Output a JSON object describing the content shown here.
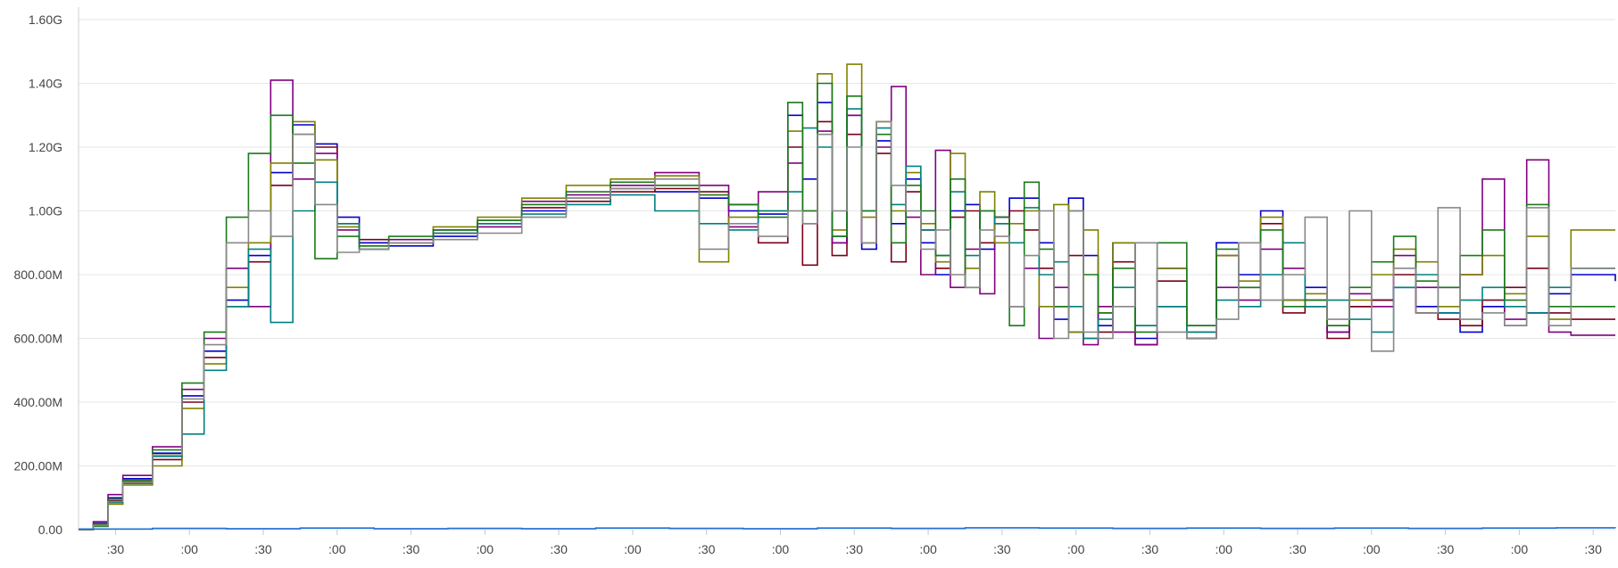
{
  "chart_data": {
    "type": "line",
    "title": "",
    "xlabel": "",
    "ylabel": "",
    "grid": true,
    "legend": "none",
    "ylim": [
      0,
      1600
    ],
    "y_unit": "M",
    "yticks": [
      {
        "value": 0,
        "label": "0.00"
      },
      {
        "value": 200,
        "label": "200.00M"
      },
      {
        "value": 400,
        "label": "400.00M"
      },
      {
        "value": 600,
        "label": "600.00M"
      },
      {
        "value": 800,
        "label": "800.00M"
      },
      {
        "value": 1000,
        "label": "1.00G"
      },
      {
        "value": 1200,
        "label": "1.20G"
      },
      {
        "value": 1400,
        "label": "1.40G"
      },
      {
        "value": 1600,
        "label": "1.60G"
      }
    ],
    "xlim": [
      0,
      10.4
    ],
    "xticks": [
      {
        "value": 0.25,
        "label": ":30"
      },
      {
        "value": 0.75,
        "label": ":00"
      },
      {
        "value": 1.25,
        "label": ":30"
      },
      {
        "value": 1.75,
        "label": ":00"
      },
      {
        "value": 2.25,
        "label": ":30"
      },
      {
        "value": 2.75,
        "label": ":00"
      },
      {
        "value": 3.25,
        "label": ":30"
      },
      {
        "value": 3.75,
        "label": ":00"
      },
      {
        "value": 4.25,
        "label": ":30"
      },
      {
        "value": 4.75,
        "label": ":00"
      },
      {
        "value": 5.25,
        "label": ":30"
      },
      {
        "value": 5.75,
        "label": ":00"
      },
      {
        "value": 6.25,
        "label": ":30"
      },
      {
        "value": 6.75,
        "label": ":00"
      },
      {
        "value": 7.25,
        "label": ":30"
      },
      {
        "value": 7.75,
        "label": ":00"
      },
      {
        "value": 8.25,
        "label": ":30"
      },
      {
        "value": 8.75,
        "label": ":00"
      },
      {
        "value": 9.25,
        "label": ":30"
      },
      {
        "value": 9.75,
        "label": ":00"
      },
      {
        "value": 10.25,
        "label": ":30"
      }
    ],
    "series": [
      {
        "color": "#0000cc",
        "x": [
          0,
          0.1,
          0.2,
          0.3,
          0.5,
          0.7,
          0.85,
          1.0,
          1.15,
          1.3,
          1.45,
          1.6,
          1.75,
          1.9,
          2.1,
          2.4,
          2.7,
          3.0,
          3.3,
          3.6,
          3.9,
          4.2,
          4.4,
          4.6,
          4.8,
          4.9,
          5.0,
          5.1,
          5.2,
          5.3,
          5.4,
          5.5,
          5.6,
          5.7,
          5.8,
          5.9,
          6.0,
          6.1,
          6.2,
          6.3,
          6.4,
          6.5,
          6.6,
          6.7,
          6.8,
          6.9,
          7.0,
          7.15,
          7.3,
          7.5,
          7.7,
          7.85,
          8.0,
          8.15,
          8.3,
          8.45,
          8.6,
          8.75,
          8.9,
          9.05,
          9.2,
          9.35,
          9.5,
          9.65,
          9.8,
          9.95,
          10.1,
          10.4
        ],
        "y": [
          0,
          20,
          100,
          160,
          240,
          420,
          560,
          720,
          860,
          1120,
          1270,
          1210,
          980,
          900,
          890,
          920,
          960,
          1000,
          1040,
          1070,
          1060,
          1040,
          1000,
          990,
          1300,
          1100,
          1340,
          900,
          1300,
          880,
          1220,
          960,
          1100,
          900,
          800,
          1000,
          1020,
          880,
          980,
          1040,
          1040,
          900,
          660,
          1040,
          860,
          640,
          900,
          600,
          820,
          640,
          900,
          800,
          1000,
          720,
          760,
          620,
          700,
          720,
          760,
          700,
          680,
          620,
          700,
          640,
          680,
          740,
          800,
          780
        ]
      },
      {
        "color": "#7a0019",
        "x": [
          0,
          0.1,
          0.2,
          0.3,
          0.5,
          0.7,
          0.85,
          1.0,
          1.15,
          1.3,
          1.45,
          1.6,
          1.75,
          1.9,
          2.1,
          2.4,
          2.7,
          3.0,
          3.3,
          3.6,
          3.9,
          4.2,
          4.4,
          4.6,
          4.8,
          4.9,
          5.0,
          5.1,
          5.2,
          5.3,
          5.4,
          5.5,
          5.6,
          5.7,
          5.8,
          5.9,
          6.0,
          6.1,
          6.2,
          6.3,
          6.4,
          6.5,
          6.6,
          6.7,
          6.8,
          6.9,
          7.0,
          7.15,
          7.3,
          7.5,
          7.7,
          7.85,
          8.0,
          8.15,
          8.3,
          8.45,
          8.6,
          8.75,
          8.9,
          9.05,
          9.2,
          9.35,
          9.5,
          9.65,
          9.8,
          9.95,
          10.1,
          10.4
        ],
        "y": [
          0,
          15,
          90,
          150,
          220,
          400,
          540,
          700,
          840,
          1080,
          1240,
          1200,
          960,
          910,
          900,
          930,
          970,
          1010,
          1030,
          1060,
          1070,
          1060,
          1020,
          900,
          1200,
          830,
          1280,
          860,
          1240,
          900,
          1180,
          840,
          1060,
          940,
          820,
          980,
          1000,
          900,
          960,
          1000,
          940,
          820,
          700,
          860,
          600,
          620,
          840,
          580,
          780,
          600,
          860,
          760,
          960,
          680,
          720,
          600,
          700,
          720,
          800,
          680,
          660,
          640,
          720,
          760,
          820,
          680,
          660,
          660
        ]
      },
      {
        "color": "#800080",
        "x": [
          0,
          0.1,
          0.2,
          0.3,
          0.5,
          0.7,
          0.85,
          1.0,
          1.15,
          1.3,
          1.45,
          1.6,
          1.75,
          1.9,
          2.1,
          2.4,
          2.7,
          3.0,
          3.3,
          3.6,
          3.9,
          4.2,
          4.4,
          4.6,
          4.8,
          4.9,
          5.0,
          5.1,
          5.2,
          5.3,
          5.4,
          5.5,
          5.6,
          5.7,
          5.8,
          5.9,
          6.0,
          6.1,
          6.2,
          6.3,
          6.4,
          6.5,
          6.6,
          6.7,
          6.8,
          6.9,
          7.0,
          7.15,
          7.3,
          7.5,
          7.7,
          7.85,
          8.0,
          8.15,
          8.3,
          8.45,
          8.6,
          8.75,
          8.9,
          9.05,
          9.2,
          9.35,
          9.5,
          9.65,
          9.8,
          9.95,
          10.1,
          10.4
        ],
        "y": [
          0,
          25,
          110,
          170,
          260,
          440,
          600,
          820,
          700,
          1410,
          1100,
          1180,
          940,
          880,
          910,
          940,
          950,
          1030,
          1050,
          1080,
          1120,
          1080,
          950,
          1060,
          1150,
          960,
          1250,
          900,
          1300,
          900,
          1200,
          1390,
          980,
          800,
          1190,
          760,
          880,
          740,
          980,
          700,
          820,
          600,
          760,
          620,
          580,
          700,
          620,
          580,
          700,
          600,
          760,
          720,
          880,
          820,
          700,
          620,
          740,
          700,
          860,
          760,
          760,
          800,
          1100,
          660,
          1160,
          620,
          610,
          610
        ]
      },
      {
        "color": "#808000",
        "x": [
          0,
          0.1,
          0.2,
          0.3,
          0.5,
          0.7,
          0.85,
          1.0,
          1.15,
          1.3,
          1.45,
          1.6,
          1.75,
          1.9,
          2.1,
          2.4,
          2.7,
          3.0,
          3.3,
          3.6,
          3.9,
          4.2,
          4.4,
          4.6,
          4.8,
          4.9,
          5.0,
          5.1,
          5.2,
          5.3,
          5.4,
          5.5,
          5.6,
          5.7,
          5.8,
          5.9,
          6.0,
          6.1,
          6.2,
          6.3,
          6.4,
          6.5,
          6.6,
          6.7,
          6.8,
          6.9,
          7.0,
          7.15,
          7.3,
          7.5,
          7.7,
          7.85,
          8.0,
          8.15,
          8.3,
          8.45,
          8.6,
          8.75,
          8.9,
          9.05,
          9.2,
          9.35,
          9.5,
          9.65,
          9.8,
          9.95,
          10.1,
          10.4
        ],
        "y": [
          0,
          10,
          80,
          140,
          200,
          380,
          520,
          760,
          900,
          1150,
          1280,
          1160,
          950,
          890,
          900,
          950,
          980,
          1040,
          1080,
          1100,
          1110,
          840,
          980,
          1000,
          1250,
          1000,
          1430,
          940,
          1460,
          980,
          1280,
          1000,
          1120,
          960,
          840,
          1180,
          820,
          1060,
          900,
          960,
          1000,
          700,
          1020,
          620,
          940,
          680,
          900,
          640,
          820,
          620,
          860,
          780,
          980,
          720,
          740,
          640,
          720,
          800,
          880,
          840,
          700,
          800,
          860,
          740,
          920,
          660,
          940,
          940
        ]
      },
      {
        "color": "#008080",
        "x": [
          0,
          0.1,
          0.2,
          0.3,
          0.5,
          0.7,
          0.85,
          1.0,
          1.15,
          1.3,
          1.45,
          1.6,
          1.75,
          1.9,
          2.1,
          2.4,
          2.7,
          3.0,
          3.3,
          3.6,
          3.9,
          4.2,
          4.4,
          4.6,
          4.8,
          4.9,
          5.0,
          5.1,
          5.2,
          5.3,
          5.4,
          5.5,
          5.6,
          5.7,
          5.8,
          5.9,
          6.0,
          6.1,
          6.2,
          6.3,
          6.4,
          6.5,
          6.6,
          6.7,
          6.8,
          6.9,
          7.0,
          7.15,
          7.3,
          7.5,
          7.7,
          7.85,
          8.0,
          8.15,
          8.3,
          8.45,
          8.6,
          8.75,
          8.9,
          9.05,
          9.2,
          9.35,
          9.5,
          9.65,
          9.8,
          9.95,
          10.1,
          10.4
        ],
        "y": [
          0,
          12,
          85,
          145,
          230,
          300,
          500,
          700,
          880,
          650,
          1000,
          1090,
          960,
          880,
          900,
          930,
          960,
          990,
          1020,
          1050,
          1000,
          960,
          940,
          1000,
          1060,
          1260,
          1200,
          920,
          1320,
          1000,
          1260,
          1020,
          1140,
          940,
          860,
          1060,
          860,
          1000,
          960,
          900,
          1010,
          800,
          840,
          700,
          600,
          660,
          760,
          640,
          700,
          620,
          720,
          700,
          800,
          900,
          700,
          720,
          660,
          620,
          760,
          800,
          680,
          720,
          760,
          700,
          680,
          760,
          820,
          820
        ]
      },
      {
        "color": "#1a7a1a",
        "x": [
          0,
          0.1,
          0.2,
          0.3,
          0.5,
          0.7,
          0.85,
          1.0,
          1.15,
          1.3,
          1.45,
          1.6,
          1.75,
          1.9,
          2.1,
          2.4,
          2.7,
          3.0,
          3.3,
          3.6,
          3.9,
          4.2,
          4.4,
          4.6,
          4.8,
          4.9,
          5.0,
          5.1,
          5.2,
          5.3,
          5.4,
          5.5,
          5.6,
          5.7,
          5.8,
          5.9,
          6.0,
          6.1,
          6.2,
          6.3,
          6.4,
          6.5,
          6.6,
          6.7,
          6.8,
          6.9,
          7.0,
          7.15,
          7.3,
          7.5,
          7.7,
          7.85,
          8.0,
          8.15,
          8.3,
          8.45,
          8.6,
          8.75,
          8.9,
          9.05,
          9.2,
          9.35,
          9.5,
          9.65,
          9.8,
          9.95,
          10.1,
          10.4
        ],
        "y": [
          0,
          18,
          95,
          155,
          250,
          460,
          620,
          980,
          1180,
          1300,
          1150,
          850,
          920,
          890,
          920,
          940,
          970,
          1020,
          1060,
          1090,
          1080,
          1050,
          1020,
          980,
          1340,
          1000,
          1400,
          920,
          1360,
          1000,
          1240,
          900,
          1080,
          1000,
          860,
          1100,
          760,
          1000,
          980,
          640,
          1090,
          880,
          700,
          1000,
          800,
          680,
          820,
          620,
          900,
          640,
          880,
          760,
          940,
          700,
          720,
          640,
          760,
          840,
          920,
          780,
          760,
          860,
          940,
          720,
          1020,
          700,
          700,
          700
        ]
      },
      {
        "color": "#888888",
        "x": [
          0,
          0.1,
          0.2,
          0.3,
          0.5,
          0.7,
          0.85,
          1.0,
          1.15,
          1.3,
          1.45,
          1.6,
          1.75,
          1.9,
          2.1,
          2.4,
          2.7,
          3.0,
          3.3,
          3.6,
          3.9,
          4.2,
          4.4,
          4.6,
          4.8,
          4.9,
          5.0,
          5.1,
          5.2,
          5.3,
          5.4,
          5.5,
          5.6,
          5.7,
          5.8,
          5.9,
          6.0,
          6.1,
          6.2,
          6.3,
          6.4,
          6.5,
          6.6,
          6.7,
          6.8,
          6.9,
          7.0,
          7.15,
          7.3,
          7.5,
          7.7,
          7.85,
          8.0,
          8.15,
          8.3,
          8.45,
          8.6,
          8.75,
          8.9,
          9.05,
          9.2,
          9.35,
          9.5,
          9.65,
          9.8,
          9.95,
          10.1,
          10.4
        ],
        "y": [
          0,
          14,
          88,
          148,
          235,
          410,
          580,
          900,
          1000,
          920,
          1240,
          1020,
          870,
          880,
          900,
          910,
          930,
          980,
          1040,
          1070,
          1100,
          880,
          960,
          920,
          1000,
          960,
          1240,
          1000,
          1200,
          900,
          1280,
          1080,
          1000,
          880,
          940,
          800,
          760,
          940,
          920,
          700,
          860,
          1000,
          600,
          1000,
          620,
          600,
          700,
          900,
          620,
          600,
          660,
          900,
          720,
          800,
          980,
          660,
          1000,
          560,
          820,
          680,
          1010,
          660,
          680,
          640,
          1010,
          640,
          820,
          820
        ]
      },
      {
        "color": "#1f6fd6",
        "x": [
          0,
          0.5,
          1.0,
          1.5,
          2.0,
          2.5,
          3.0,
          3.5,
          4.0,
          4.5,
          5.0,
          5.5,
          6.0,
          6.5,
          7.0,
          7.5,
          8.0,
          8.5,
          9.0,
          9.5,
          10.0,
          10.4
        ],
        "y": [
          2,
          4,
          3,
          5,
          3,
          4,
          3,
          5,
          4,
          3,
          5,
          4,
          6,
          5,
          4,
          5,
          4,
          5,
          4,
          5,
          6,
          5
        ]
      }
    ]
  }
}
